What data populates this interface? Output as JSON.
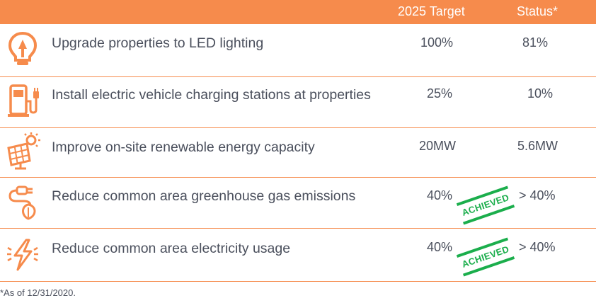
{
  "header": {
    "target_label": "2025 Target",
    "status_label": "Status*"
  },
  "rows": [
    {
      "goal": "Upgrade properties to LED lighting",
      "target": "100%",
      "status": "81%",
      "icon": "led-bulb-icon"
    },
    {
      "goal": "Install electric vehicle charging stations at properties",
      "target": "25%",
      "status": "10%",
      "icon": "ev-charger-icon"
    },
    {
      "goal": "Improve on-site renewable energy capacity",
      "target": "20MW",
      "status": "5.6MW",
      "icon": "solar-panel-icon"
    },
    {
      "goal": "Reduce common area greenhouse gas emissions",
      "target": "40%",
      "status": "> 40%",
      "stamp": "ACHIEVED",
      "icon": "plug-leaf-icon"
    },
    {
      "goal": "Reduce common area electricity usage",
      "target": "40%",
      "status": "> 40%",
      "stamp": "ACHIEVED",
      "icon": "lightning-bolt-icon"
    }
  ],
  "footnote": "*As of 12/31/2020.",
  "colors": {
    "accent": "#F68B4C",
    "text": "#4A4F5C",
    "achieved": "#1BAE4C"
  }
}
